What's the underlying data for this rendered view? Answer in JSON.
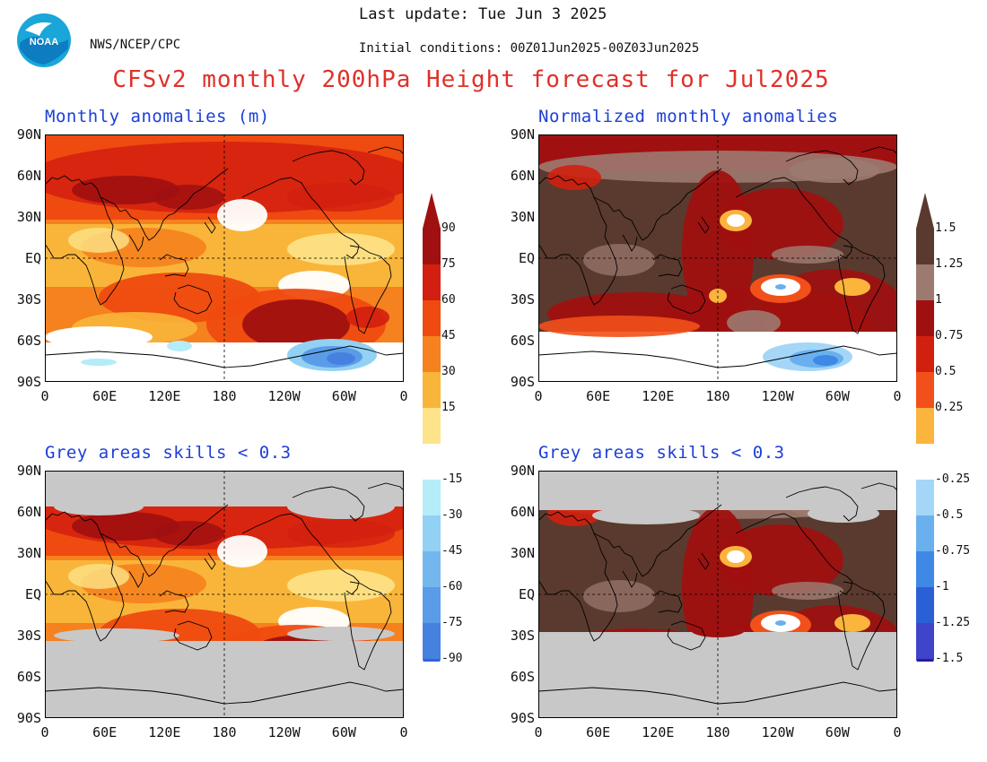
{
  "header": {
    "last_update": "Last update: Tue Jun  3 2025",
    "initial_conditions": "Initial conditions: 00Z01Jun2025-00Z03Jun2025",
    "agency": "NWS/NCEP/CPC",
    "title": "CFSv2 monthly 200hPa Height forecast for Jul2025",
    "logo_text": "NOAA"
  },
  "panels": [
    {
      "id": "tl",
      "title": "Monthly anomalies (m)"
    },
    {
      "id": "tr",
      "title": "Normalized monthly anomalies"
    },
    {
      "id": "bl",
      "title": "Grey areas skills < 0.3"
    },
    {
      "id": "br",
      "title": "Grey areas skills < 0.3"
    }
  ],
  "axes": {
    "lat_labels": [
      "90N",
      "60N",
      "30N",
      "EQ",
      "30S",
      "60S",
      "90S"
    ],
    "lon_labels": [
      "0",
      "60E",
      "120E",
      "180",
      "120W",
      "60W",
      "0"
    ]
  },
  "colorbar_left": {
    "pos_labels": [
      "90",
      "75",
      "60",
      "45",
      "30",
      "15"
    ],
    "neg_labels": [
      "-15",
      "-30",
      "-45",
      "-60",
      "-75",
      "-90"
    ],
    "pos_colors": [
      "#a01010",
      "#d21f0f",
      "#ef4a10",
      "#f5821e",
      "#f9b53a",
      "#fde38a"
    ],
    "neg_colors": [
      "#b4ecf8",
      "#92d1f3",
      "#73b7ee",
      "#5a9ce7",
      "#4681e0",
      "#2f64d7"
    ],
    "units": "m"
  },
  "colorbar_right": {
    "pos_labels": [
      "1.5",
      "1.25",
      "1",
      "0.75",
      "0.5",
      "0.25"
    ],
    "neg_labels": [
      "-0.25",
      "-0.5",
      "-0.75",
      "-1",
      "-1.25",
      "-1.5"
    ],
    "pos_colors": [
      "#5a3a2e",
      "#9c7a70",
      "#a01010",
      "#d2200f",
      "#f2501a",
      "#fbb43c"
    ],
    "neg_colors": [
      "#a4d6f7",
      "#6ab0ef",
      "#3f88e6",
      "#2b5fd6",
      "#3f45c8",
      "#2a1a9c"
    ]
  },
  "colors": {
    "title_red": "#e0302a",
    "panel_title_blue": "#1c3fd8",
    "skill_mask_grey": "#c8c8c8",
    "dark_brown": "#5a3a2e",
    "light_brown": "#9c7a70"
  }
}
